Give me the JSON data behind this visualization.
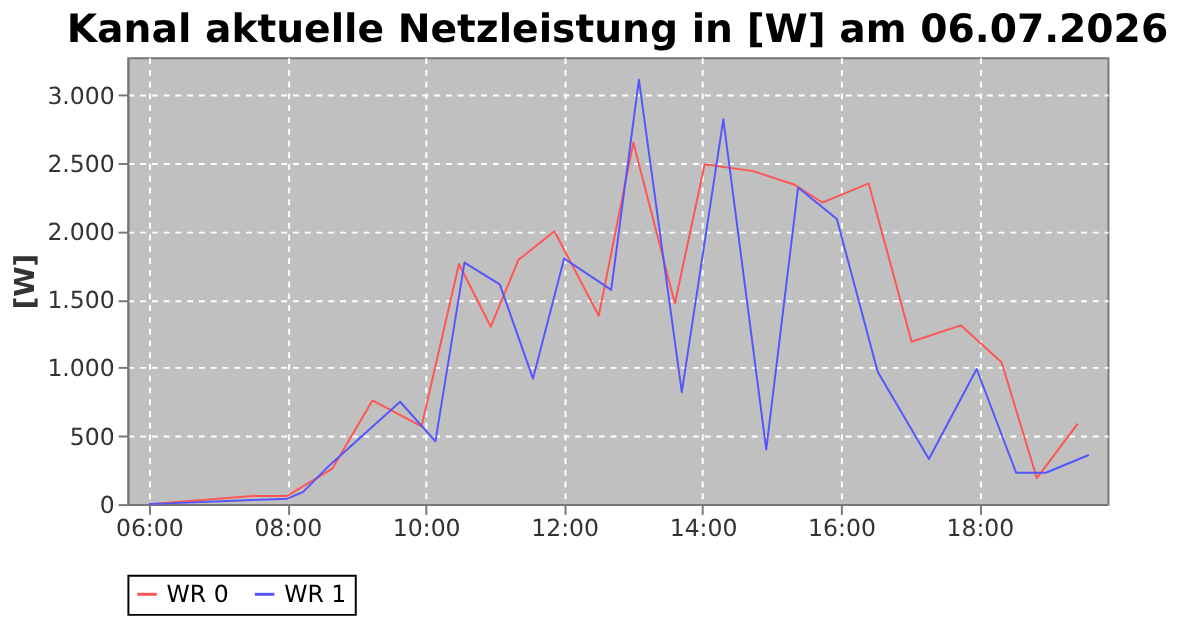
{
  "chart_data": {
    "type": "line",
    "title": "Kanal aktuelle Netzleistung in [W] am 06.07.2026",
    "ylabel": "[W]",
    "xlim": [
      5.69,
      19.85
    ],
    "ylim": [
      0,
      3275
    ],
    "xticks": [
      {
        "value": 6,
        "label": "06:00"
      },
      {
        "value": 8,
        "label": "08:00"
      },
      {
        "value": 10,
        "label": "10:00"
      },
      {
        "value": 12,
        "label": "12:00"
      },
      {
        "value": 14,
        "label": "14:00"
      },
      {
        "value": 16,
        "label": "16:00"
      },
      {
        "value": 18,
        "label": "18:00"
      }
    ],
    "yticks": [
      0,
      {
        "value": 500,
        "label": "500"
      },
      {
        "value": 1000,
        "label": "1.000"
      },
      {
        "value": 1500,
        "label": "1.500"
      },
      {
        "value": 2000,
        "label": "2.000"
      },
      {
        "value": 2500,
        "label": "2.500"
      },
      {
        "value": 3000,
        "label": "3.000"
      }
    ],
    "grid": true,
    "legend": "bottom",
    "line_style": "solid",
    "series": [
      {
        "name": "WR 0",
        "color": "#ff5555",
        "x": [
          6.0,
          7.5,
          8.0,
          8.65,
          9.23,
          9.94,
          10.48,
          10.94,
          11.34,
          11.86,
          12.5,
          13.0,
          13.6,
          14.03,
          14.73,
          15.33,
          15.73,
          16.4,
          17.02,
          17.73,
          18.32,
          18.83,
          19.42
        ],
        "values": [
          0,
          60,
          60,
          260,
          760,
          570,
          1760,
          1300,
          1790,
          2000,
          1380,
          2650,
          1470,
          2490,
          2440,
          2340,
          2210,
          2350,
          1190,
          1310,
          1040,
          190,
          590
        ]
      },
      {
        "name": "WR 1",
        "color": "#5555ff",
        "x": [
          6.0,
          7.5,
          8.0,
          8.23,
          8.6,
          9.63,
          10.14,
          10.56,
          11.07,
          11.55,
          12.0,
          12.68,
          13.08,
          13.7,
          14.3,
          14.92,
          15.38,
          15.94,
          16.53,
          17.27,
          17.96,
          18.53,
          18.96,
          19.58
        ],
        "values": [
          0,
          30,
          40,
          90,
          280,
          750,
          460,
          1770,
          1610,
          920,
          1800,
          1570,
          3110,
          820,
          2820,
          400,
          2320,
          2090,
          970,
          330,
          990,
          230,
          230,
          360
        ]
      }
    ]
  }
}
